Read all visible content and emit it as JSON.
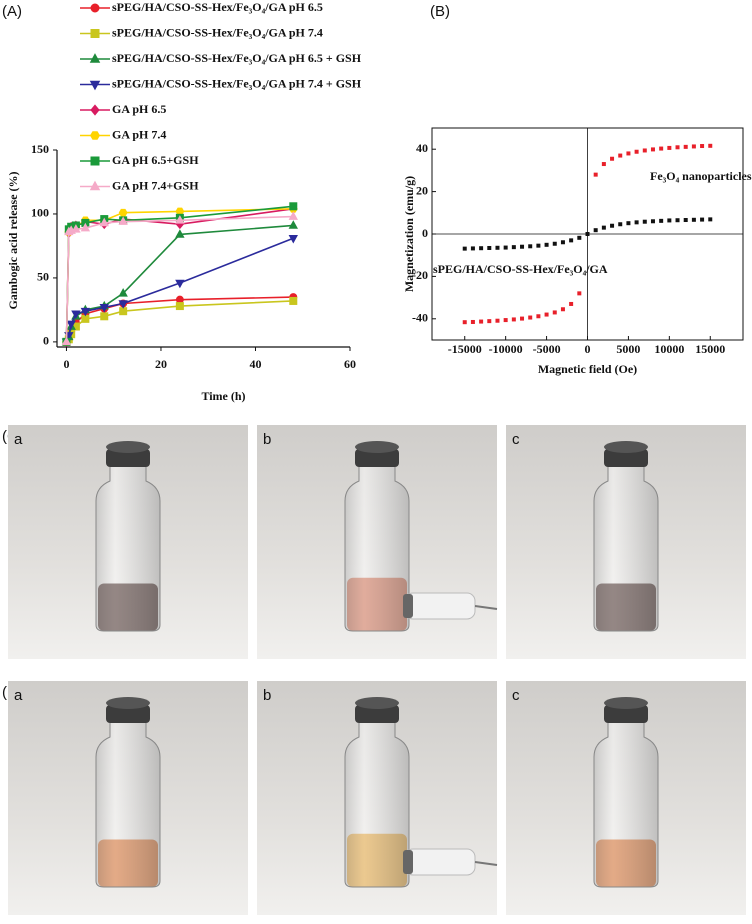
{
  "chart_data": [
    {
      "type": "line",
      "panel_label": "(A)",
      "x_label": "Time (h)",
      "y_label": "Gambogic acid release (%)",
      "x": [
        0,
        0.5,
        1,
        2,
        4,
        8,
        12,
        24,
        48
      ],
      "xlim": [
        -2,
        60
      ],
      "xticks": [
        0,
        20,
        40,
        60
      ],
      "ylim": [
        -4,
        150
      ],
      "yticks": [
        0,
        50,
        100,
        150
      ],
      "legend": "upper left",
      "series": [
        {
          "name": "sPEG/HA/CSO-SS-Hex/Fe₃O₄/GA pH 6.5",
          "color": "#e8202a",
          "marker": "circle",
          "values": [
            0,
            2,
            8,
            15,
            22,
            26,
            30,
            33,
            35
          ]
        },
        {
          "name": "sPEG/HA/CSO-SS-Hex/Fe₃O₄/GA pH 7.4",
          "color": "#c9c61e",
          "marker": "square",
          "values": [
            0,
            2,
            6,
            12,
            18,
            20,
            24,
            28,
            32
          ]
        },
        {
          "name": "sPEG/HA/CSO-SS-Hex/Fe₃O₄/GA pH 6.5 + GSH",
          "color": "#1f8a3c",
          "marker": "triangle",
          "values": [
            0,
            4,
            12,
            20,
            25,
            28,
            38,
            84,
            91
          ]
        },
        {
          "name": "sPEG/HA/CSO-SS-Hex/Fe₃O₄/GA pH 7.4 + GSH",
          "color": "#2b2b9c",
          "marker": "triangle-down",
          "values": [
            0,
            5,
            14,
            22,
            24,
            27,
            30,
            46,
            81
          ]
        },
        {
          "name": "GA pH 6.5",
          "color": "#d81b60",
          "marker": "diamond",
          "values": [
            0,
            85,
            90,
            91,
            94,
            92,
            96,
            92,
            104
          ]
        },
        {
          "name": "GA pH 7.4",
          "color": "#ffd400",
          "marker": "hexagon",
          "values": [
            0,
            86,
            88,
            90,
            95,
            95,
            101,
            102,
            104
          ]
        },
        {
          "name": "GA pH 6.5+GSH",
          "color": "#1a9a3a",
          "marker": "square",
          "values": [
            0,
            88,
            90,
            91,
            93,
            96,
            95,
            97,
            106
          ]
        },
        {
          "name": "GA pH 7.4+GSH",
          "color": "#f5aac8",
          "marker": "triangle",
          "values": [
            0,
            86,
            87,
            88,
            89,
            93,
            94,
            95,
            98
          ]
        }
      ]
    },
    {
      "type": "scatter",
      "panel_label": "(B)",
      "x_label": "Magnetic field (Oe)",
      "y_label": "Magnetization (emu/g)",
      "x": [
        -15000,
        -14000,
        -13000,
        -12000,
        -11000,
        -10000,
        -9000,
        -8000,
        -7000,
        -6000,
        -5000,
        -4000,
        -3000,
        -2000,
        -1000,
        0,
        1000,
        2000,
        3000,
        4000,
        5000,
        6000,
        7000,
        8000,
        9000,
        10000,
        11000,
        12000,
        13000,
        14000,
        15000
      ],
      "xlim": [
        -19000,
        19000
      ],
      "xticks": [
        -15000,
        -10000,
        -5000,
        0,
        5000,
        10000,
        15000
      ],
      "ylim": [
        -50,
        50
      ],
      "yticks": [
        -40,
        -20,
        0,
        20,
        40
      ],
      "series": [
        {
          "name": "Fe₃O₄ nanoparticles",
          "color": "#e8202a",
          "values": [
            -41.6,
            -41.5,
            -41.3,
            -41.1,
            -40.9,
            -40.6,
            -40.3,
            -39.9,
            -39.4,
            -38.8,
            -38,
            -37,
            -35.5,
            -33,
            -28,
            0,
            28,
            33,
            35.5,
            37,
            38,
            38.8,
            39.4,
            39.9,
            40.3,
            40.6,
            40.9,
            41.1,
            41.3,
            41.5,
            41.6
          ]
        },
        {
          "name": "sPEG/HA/CSO-SS-Hex/Fe₃O₄/GA",
          "color": "#111111",
          "values": [
            -6.9,
            -6.8,
            -6.7,
            -6.6,
            -6.5,
            -6.4,
            -6.2,
            -6,
            -5.8,
            -5.5,
            -5.1,
            -4.6,
            -3.9,
            -3,
            -1.8,
            0,
            1.8,
            3,
            3.9,
            4.6,
            5.1,
            5.5,
            5.8,
            6,
            6.2,
            6.4,
            6.5,
            6.6,
            6.7,
            6.8,
            6.9
          ]
        }
      ]
    }
  ],
  "photos": [
    {
      "panel_label": "(C)",
      "items": [
        "a",
        "b",
        "c"
      ]
    },
    {
      "panel_label": "(D)",
      "items": [
        "a",
        "b",
        "c"
      ]
    }
  ]
}
